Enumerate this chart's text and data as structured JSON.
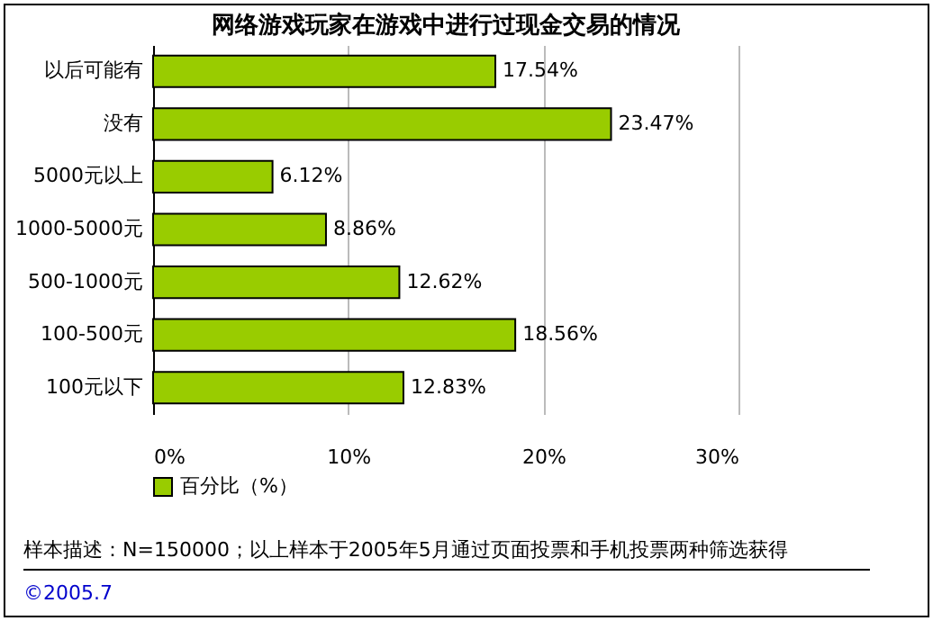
{
  "chart_data": {
    "type": "bar",
    "orientation": "horizontal",
    "title": "网络游戏玩家在游戏中进行过现金交易的情况",
    "categories": [
      "以后可能有",
      "没有",
      "5000元以上",
      "1000-5000元",
      "500-1000元",
      "100-500元",
      "100元以下"
    ],
    "series": [
      {
        "name": "百分比（%）",
        "color": "#99cc00",
        "values": [
          17.54,
          23.47,
          6.12,
          8.86,
          12.62,
          18.56,
          12.83
        ],
        "value_labels": [
          "17.54%",
          "23.47%",
          "6.12%",
          "8.86%",
          "12.62%",
          "18.56%",
          "12.83%"
        ]
      }
    ],
    "xlim": [
      0,
      30
    ],
    "xticks": [
      {
        "value": 0,
        "label": "0%"
      },
      {
        "value": 10,
        "label": "10%"
      },
      {
        "value": 20,
        "label": "20%"
      },
      {
        "value": 30,
        "label": "30%"
      }
    ],
    "grid": "x",
    "legend": "bottom",
    "annotations": [
      "样本描述：N=150000；以上样本于2005年5月通过页面投票和手机投票两种筛选获得",
      "©2005.7"
    ]
  }
}
